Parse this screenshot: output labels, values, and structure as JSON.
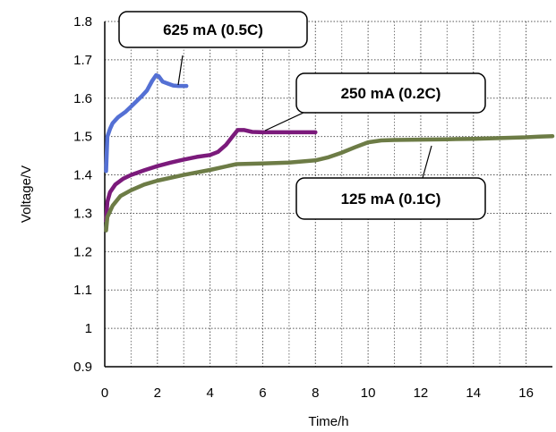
{
  "chart_data": {
    "type": "line",
    "xlabel": "Time/h",
    "ylabel": "Voltage/V",
    "xlim": [
      0,
      17
    ],
    "ylim": [
      0.9,
      1.8
    ],
    "x_ticks": [
      0,
      2,
      4,
      6,
      8,
      10,
      12,
      14,
      16
    ],
    "y_ticks": [
      0.9,
      1.0,
      1.1,
      1.2,
      1.3,
      1.4,
      1.5,
      1.6,
      1.7,
      1.8
    ],
    "x_tick_labels": [
      "0",
      "2",
      "4",
      "6",
      "8",
      "10",
      "12",
      "14",
      "16"
    ],
    "y_tick_labels": [
      "0.9",
      "1",
      "1.1",
      "1.2",
      "1.3",
      "1.4",
      "1.5",
      "1.6",
      "1.7",
      "1.8"
    ],
    "grid": "dotted",
    "series": [
      {
        "name": "625 mA (0.5C)",
        "color": "#5470d4",
        "x": [
          0.05,
          0.1,
          0.2,
          0.3,
          0.5,
          0.8,
          1.1,
          1.4,
          1.6,
          1.8,
          1.95,
          2.05,
          2.2,
          2.4,
          2.6,
          2.8,
          3.1
        ],
        "y": [
          1.41,
          1.5,
          1.52,
          1.535,
          1.55,
          1.565,
          1.585,
          1.605,
          1.62,
          1.645,
          1.66,
          1.657,
          1.643,
          1.638,
          1.633,
          1.632,
          1.632
        ]
      },
      {
        "name": "250 mA (0.2C)",
        "color": "#7b1a7b",
        "x": [
          0.05,
          0.1,
          0.2,
          0.4,
          0.7,
          1.0,
          1.5,
          2.0,
          2.5,
          3.0,
          3.5,
          4.0,
          4.3,
          4.6,
          4.85,
          5.05,
          5.3,
          5.6,
          6.0,
          6.5,
          7.0,
          7.5,
          8.0
        ],
        "y": [
          1.28,
          1.33,
          1.355,
          1.375,
          1.39,
          1.4,
          1.412,
          1.423,
          1.432,
          1.44,
          1.447,
          1.452,
          1.46,
          1.478,
          1.5,
          1.517,
          1.517,
          1.512,
          1.511,
          1.511,
          1.511,
          1.511,
          1.511
        ]
      },
      {
        "name": "125 mA (0.1C)",
        "color": "#6d7c46",
        "x": [
          0.05,
          0.1,
          0.3,
          0.6,
          1.0,
          1.5,
          2.0,
          3.0,
          4.0,
          5.0,
          6.0,
          7.0,
          8.0,
          8.5,
          9.0,
          9.5,
          10.0,
          10.5,
          11.0,
          12.0,
          13.0,
          14.0,
          15.0,
          16.0,
          16.5,
          17.0
        ],
        "y": [
          1.255,
          1.29,
          1.32,
          1.345,
          1.36,
          1.375,
          1.385,
          1.4,
          1.413,
          1.428,
          1.43,
          1.432,
          1.438,
          1.446,
          1.458,
          1.472,
          1.485,
          1.49,
          1.491,
          1.492,
          1.493,
          1.494,
          1.496,
          1.498,
          1.5,
          1.501
        ]
      }
    ],
    "annotations": [
      {
        "text": "625 mA (0.5C)",
        "series": 0
      },
      {
        "text": "250 mA (0.2C)",
        "series": 1
      },
      {
        "text": "125 mA (0.1C)",
        "series": 2
      }
    ]
  }
}
